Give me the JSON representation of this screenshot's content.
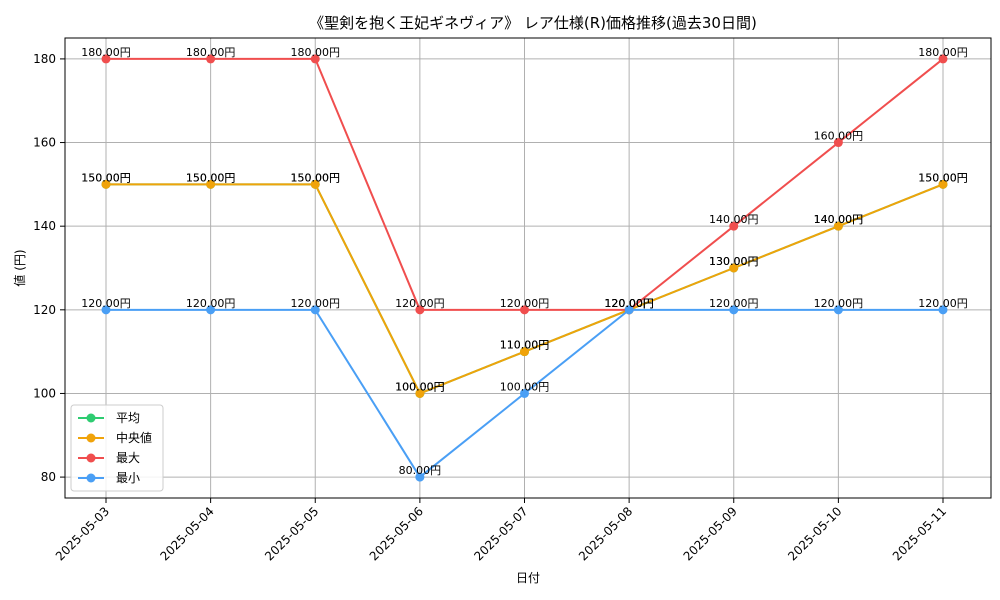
{
  "chart_data": {
    "type": "line",
    "title": "《聖剣を抱く王妃ギネヴィア》 レア仕様(R)価格推移(過去30日間)",
    "xlabel": "日付",
    "ylabel": "値 (円)",
    "categories": [
      "2025-05-03",
      "2025-05-04",
      "2025-05-05",
      "2025-05-06",
      "2025-05-07",
      "2025-05-08",
      "2025-05-09",
      "2025-05-10",
      "2025-05-11"
    ],
    "ylim": [
      75,
      185
    ],
    "yticks": [
      80,
      100,
      120,
      140,
      160,
      180
    ],
    "value_suffix": "円",
    "grid": true,
    "legend_position": "lower-left",
    "series": [
      {
        "name": "平均",
        "color": "#2ecc71",
        "values": [
          150,
          150,
          150,
          100,
          110,
          120,
          130,
          140,
          150
        ]
      },
      {
        "name": "中央値",
        "color": "#f0a30a",
        "values": [
          150,
          150,
          150,
          100,
          110,
          120,
          130,
          140,
          150
        ]
      },
      {
        "name": "最大",
        "color": "#f04e4e",
        "values": [
          180,
          180,
          180,
          120,
          120,
          120,
          140,
          160,
          180
        ]
      },
      {
        "name": "最小",
        "color": "#4a9ff5",
        "values": [
          120,
          120,
          120,
          80,
          100,
          120,
          120,
          120,
          120
        ]
      }
    ]
  }
}
